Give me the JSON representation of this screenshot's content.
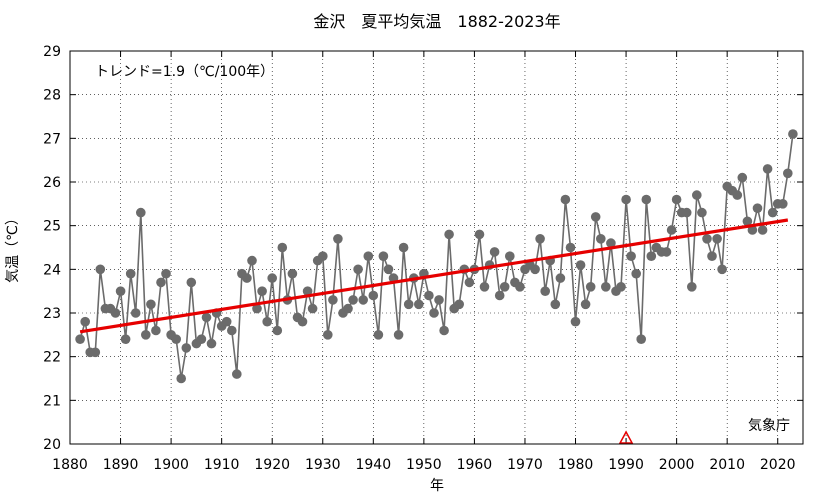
{
  "chart_data": {
    "type": "line",
    "title": "金沢　夏平均気温　1882-2023年",
    "xlabel": "年",
    "ylabel": "気温（℃）",
    "xlim": [
      1880,
      2025
    ],
    "ylim": [
      20,
      29
    ],
    "x_ticks": [
      "1880",
      "1890",
      "1900",
      "1910",
      "1920",
      "1930",
      "1940",
      "1950",
      "1960",
      "1970",
      "1980",
      "1990",
      "2000",
      "2010",
      "2020"
    ],
    "y_ticks": [
      "20",
      "21",
      "22",
      "23",
      "24",
      "25",
      "26",
      "27",
      "28",
      "29"
    ],
    "grid": true,
    "trend_label": "トレンド=1.9（℃/100年）",
    "source_label": "気象庁",
    "series_color": "#6b6b6b",
    "trend_color": "#e60000",
    "marker_color": "#e60000",
    "x": [
      1882,
      1883,
      1884,
      1885,
      1886,
      1887,
      1888,
      1889,
      1890,
      1891,
      1892,
      1893,
      1894,
      1895,
      1896,
      1897,
      1898,
      1899,
      1900,
      1901,
      1902,
      1903,
      1904,
      1905,
      1906,
      1907,
      1908,
      1909,
      1910,
      1911,
      1912,
      1913,
      1914,
      1915,
      1916,
      1917,
      1918,
      1919,
      1920,
      1921,
      1922,
      1923,
      1924,
      1925,
      1926,
      1927,
      1928,
      1929,
      1930,
      1931,
      1932,
      1933,
      1934,
      1935,
      1936,
      1937,
      1938,
      1939,
      1940,
      1941,
      1942,
      1943,
      1944,
      1945,
      1946,
      1947,
      1948,
      1949,
      1950,
      1951,
      1952,
      1953,
      1954,
      1955,
      1956,
      1957,
      1958,
      1959,
      1960,
      1961,
      1962,
      1963,
      1964,
      1965,
      1966,
      1967,
      1968,
      1969,
      1970,
      1971,
      1972,
      1973,
      1974,
      1975,
      1976,
      1977,
      1978,
      1979,
      1980,
      1981,
      1982,
      1983,
      1984,
      1985,
      1986,
      1987,
      1988,
      1989,
      1990,
      1991,
      1992,
      1993,
      1994,
      1995,
      1996,
      1997,
      1998,
      1999,
      2000,
      2001,
      2002,
      2003,
      2004,
      2005,
      2006,
      2007,
      2008,
      2009,
      2010,
      2011,
      2012,
      2013,
      2014,
      2015,
      2016,
      2017,
      2018,
      2019,
      2020,
      2021,
      2022,
      2023
    ],
    "values": [
      22.4,
      22.8,
      22.1,
      22.1,
      24.0,
      23.1,
      23.1,
      23.0,
      23.5,
      22.4,
      23.9,
      23.0,
      25.3,
      22.5,
      23.2,
      22.6,
      23.7,
      23.9,
      22.5,
      22.4,
      21.5,
      22.2,
      23.7,
      22.3,
      22.4,
      22.9,
      22.3,
      23.0,
      22.7,
      22.8,
      22.6,
      21.6,
      23.9,
      23.8,
      24.2,
      23.1,
      23.5,
      22.8,
      23.8,
      22.6,
      24.5,
      23.3,
      23.9,
      22.9,
      22.8,
      23.5,
      23.1,
      24.2,
      24.3,
      22.5,
      23.3,
      24.7,
      23.0,
      23.1,
      23.3,
      24.0,
      23.3,
      24.3,
      23.4,
      22.5,
      24.3,
      24.0,
      23.8,
      22.5,
      24.5,
      23.2,
      23.8,
      23.2,
      23.9,
      23.4,
      23.0,
      23.3,
      22.6,
      24.8,
      23.1,
      23.2,
      24.0,
      23.7,
      24.0,
      24.8,
      23.6,
      24.1,
      24.4,
      23.4,
      23.6,
      24.3,
      23.7,
      23.6,
      24.0,
      24.1,
      24.0,
      24.7,
      23.5,
      24.2,
      23.2,
      23.8,
      25.6,
      24.5,
      22.8,
      24.1,
      23.2,
      23.6,
      25.2,
      24.7,
      23.6,
      24.6,
      23.5,
      23.6,
      25.6,
      24.3,
      23.9,
      22.4,
      25.6,
      24.3,
      24.5,
      24.4,
      24.4,
      24.9,
      25.6,
      25.3,
      25.3,
      23.6,
      25.7,
      25.3,
      24.7,
      24.3,
      24.7,
      24.0,
      25.9,
      25.8,
      25.7,
      26.1,
      25.1,
      24.9,
      25.4,
      24.9,
      26.3,
      25.3,
      25.5,
      25.5,
      26.2,
      27.1
    ],
    "trend": {
      "x": [
        1882,
        2022
      ],
      "y": [
        22.57,
        25.13
      ]
    },
    "marker": {
      "x": 1990,
      "y": 20
    }
  }
}
